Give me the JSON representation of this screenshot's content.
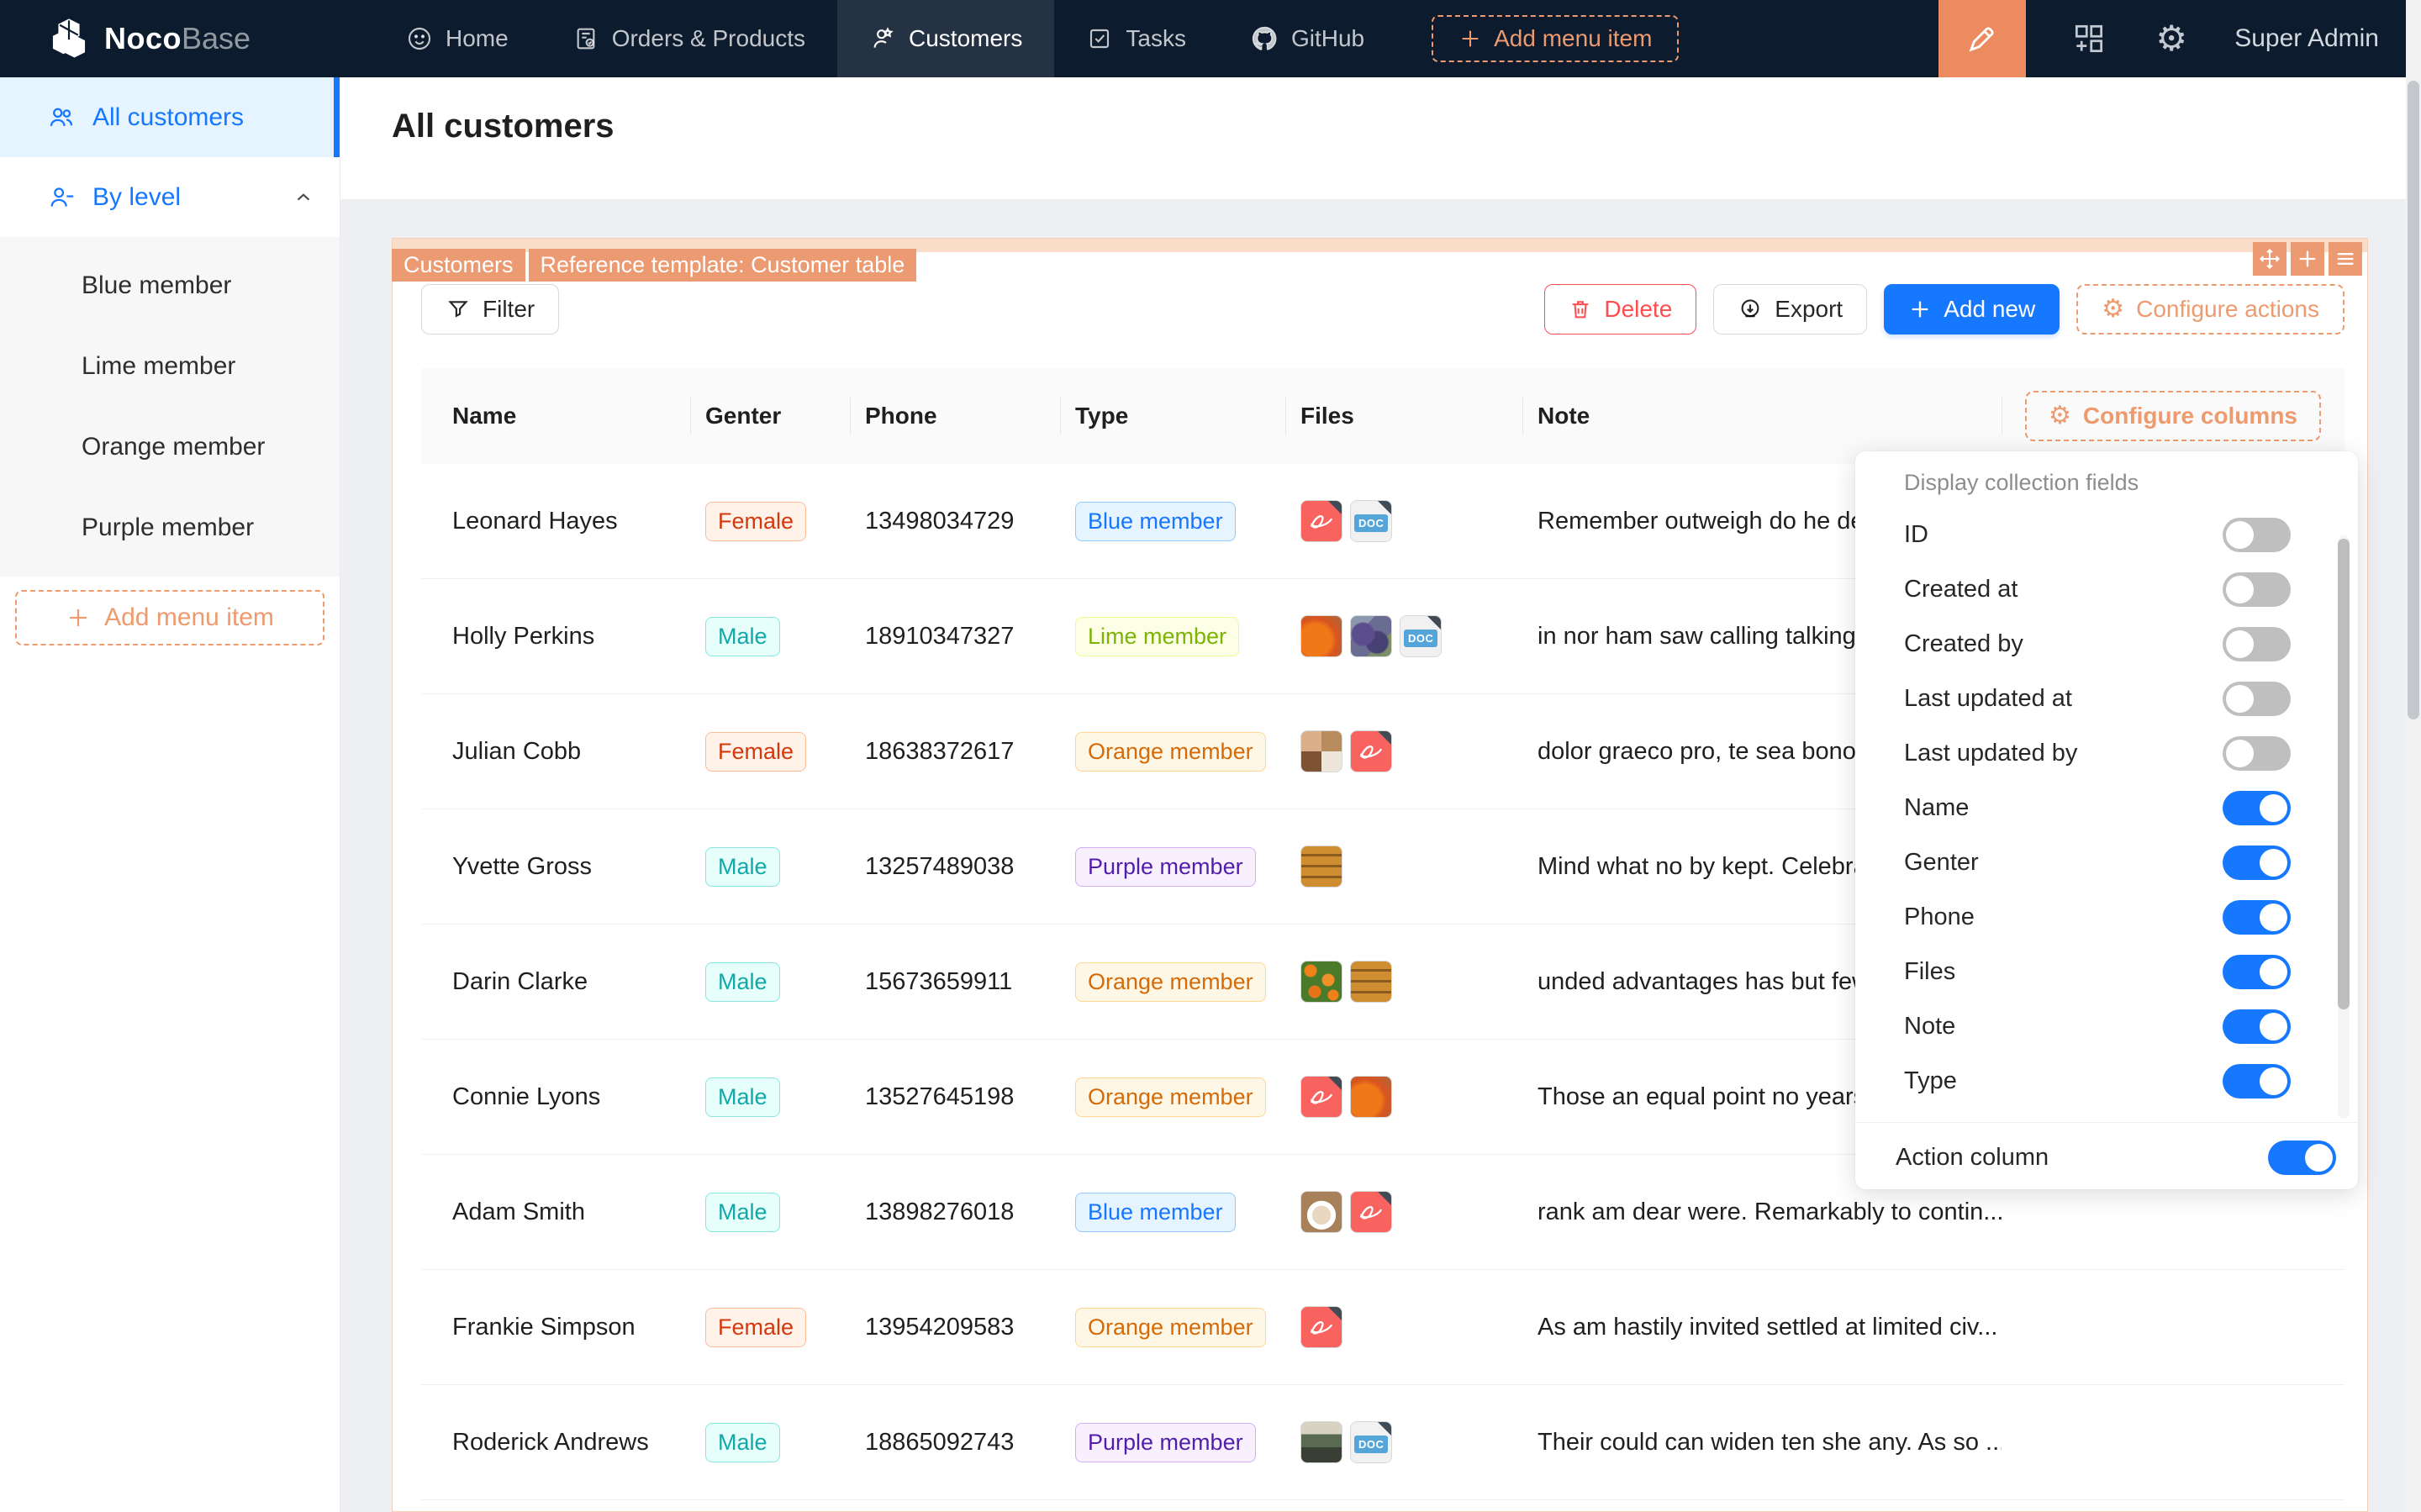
{
  "nav": {
    "brand": {
      "bold": "Noco",
      "light": "Base"
    },
    "items": [
      {
        "label": "Home",
        "icon": "home-smiley-icon",
        "active": false
      },
      {
        "label": "Orders & Products",
        "icon": "orders-icon",
        "active": false
      },
      {
        "label": "Customers",
        "icon": "customers-icon",
        "active": true
      },
      {
        "label": "Tasks",
        "icon": "tasks-icon",
        "active": false
      },
      {
        "label": "GitHub",
        "icon": "github-icon",
        "active": false
      }
    ],
    "add_menu_item_label": "Add menu item",
    "user": "Super Admin"
  },
  "sidebar": {
    "all_customers_label": "All customers",
    "by_level_label": "By level",
    "by_level_children": [
      "Blue member",
      "Lime member",
      "Orange member",
      "Purple member"
    ],
    "add_menu_item_label": "Add menu item"
  },
  "page": {
    "title": "All customers"
  },
  "block": {
    "tags": [
      "Customers",
      "Reference template: Customer table"
    ],
    "corner_icons": [
      "move-icon",
      "plus-icon",
      "menu-icon"
    ]
  },
  "toolbar": {
    "filter_label": "Filter",
    "delete_label": "Delete",
    "export_label": "Export",
    "add_new_label": "Add new",
    "configure_actions_label": "Configure actions"
  },
  "table": {
    "columns": [
      "Name",
      "Genter",
      "Phone",
      "Type",
      "Files",
      "Note"
    ],
    "configure_columns_label": "Configure columns",
    "file_doc_label": "DOC",
    "rows": [
      {
        "name": "Leonard Hayes",
        "gender": "Female",
        "phone": "13498034729",
        "type": "Blue member",
        "type_color": "blue",
        "files": [
          "pdf",
          "doc"
        ],
        "note": "Remember outweigh do he desirous no c..."
      },
      {
        "name": "Holly Perkins",
        "gender": "Male",
        "phone": "18910347327",
        "type": "Lime member",
        "type_color": "lime",
        "files": [
          "img-pumpkin",
          "img-grapes",
          "doc"
        ],
        "note": "in nor ham saw calling talking. Securing a..."
      },
      {
        "name": "Julian Cobb",
        "gender": "Female",
        "phone": "18638372617",
        "type": "Orange member",
        "type_color": "orange",
        "files": [
          "img-food",
          "pdf"
        ],
        "note": "dolor graeco pro, te sea bonorum doloru..."
      },
      {
        "name": "Yvette Gross",
        "gender": "Male",
        "phone": "13257489038",
        "type": "Purple member",
        "type_color": "purple",
        "files": [
          "img-baklava"
        ],
        "note": "Mind what no by kept. Celebrated no he ..."
      },
      {
        "name": "Darin Clarke",
        "gender": "Male",
        "phone": "15673659911",
        "type": "Orange member",
        "type_color": "orange",
        "files": [
          "img-oranges",
          "img-baklava"
        ],
        "note": "unded advantages has but few add. Yet w..."
      },
      {
        "name": "Connie Lyons",
        "gender": "Male",
        "phone": "13527645198",
        "type": "Orange member",
        "type_color": "orange",
        "files": [
          "pdf",
          "img-pumpkin"
        ],
        "note": "Those an equal point no years do. Depen..."
      },
      {
        "name": "Adam Smith",
        "gender": "Male",
        "phone": "13898276018",
        "type": "Blue member",
        "type_color": "blue",
        "files": [
          "img-latte",
          "pdf"
        ],
        "note": "rank am dear were. Remarkably to contin..."
      },
      {
        "name": "Frankie Simpson",
        "gender": "Female",
        "phone": "13954209583",
        "type": "Orange member",
        "type_color": "orange",
        "files": [
          "pdf"
        ],
        "note": "As am hastily invited settled at limited civ..."
      },
      {
        "name": "Roderick Andrews",
        "gender": "Male",
        "phone": "18865092743",
        "type": "Purple member",
        "type_color": "purple",
        "files": [
          "img-cafe",
          "doc"
        ],
        "note": "Their could can widen ten she any. As so ..."
      }
    ]
  },
  "column_dropdown": {
    "title": "Display collection fields",
    "fields": [
      {
        "label": "ID",
        "on": false
      },
      {
        "label": "Created at",
        "on": false
      },
      {
        "label": "Created by",
        "on": false
      },
      {
        "label": "Last updated at",
        "on": false
      },
      {
        "label": "Last updated by",
        "on": false
      },
      {
        "label": "Name",
        "on": true
      },
      {
        "label": "Genter",
        "on": true
      },
      {
        "label": "Phone",
        "on": true
      },
      {
        "label": "Files",
        "on": true
      },
      {
        "label": "Note",
        "on": true
      },
      {
        "label": "Type",
        "on": true
      }
    ],
    "action_column": {
      "label": "Action column",
      "on": true
    }
  },
  "colors": {
    "nav_bg": "#0d1b2e",
    "designer_orange": "#ec9a72",
    "primary_blue": "#1677ff",
    "danger_red": "#ff4d4f",
    "sidebar_active_bg": "#e6f4ff",
    "content_bg": "#edeff3",
    "toggle_off": "#bfbfbf",
    "badge_female": "#d4380d",
    "badge_male": "#13a8a8",
    "badge_blue_member": "#1677ff",
    "badge_lime_member": "#7cb305",
    "badge_orange_member": "#d46b08",
    "badge_purple_member": "#531dab"
  }
}
